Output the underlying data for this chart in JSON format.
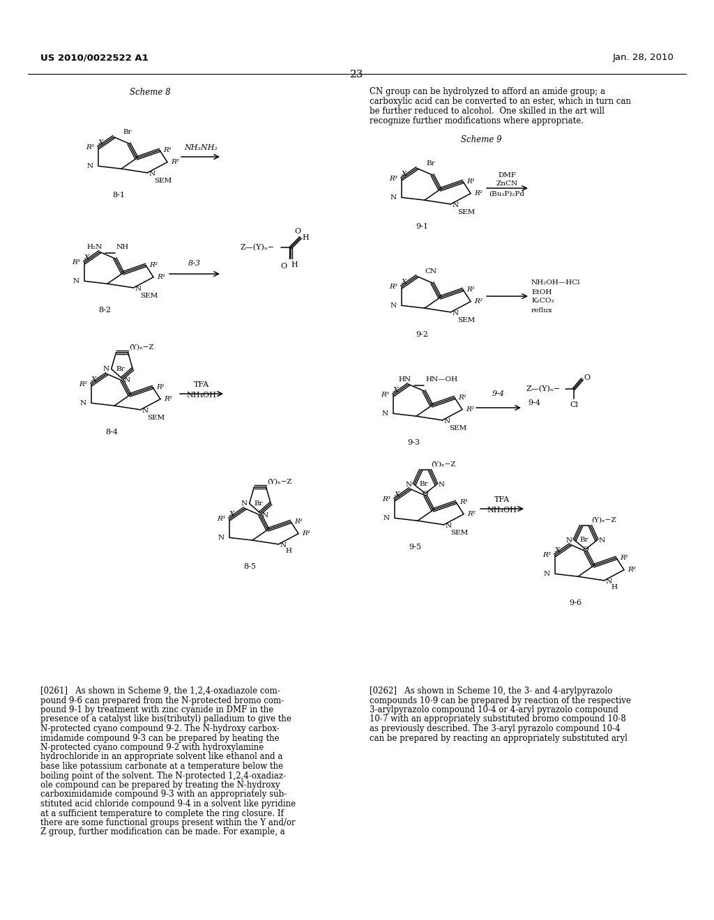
{
  "header_left": "US 2010/0022522 A1",
  "header_right": "Jan. 28, 2010",
  "page_number": "23",
  "scheme8_title": "Scheme 8",
  "scheme9_title": "Scheme 9",
  "bg": "#ffffff",
  "top_right_lines": [
    "CN group can be hydrolyzed to afford an amide group; a",
    "carboxylic acid can be converted to an ester, which in turn can",
    "be further reduced to alcohol.  One skilled in the art will",
    "recognize further modifications where appropriate."
  ],
  "body_left_lines": [
    "[0261]   As shown in Scheme 9, the 1,2,4-oxadiazole com-",
    "pound 9-6 can prepared from the N-protected bromo com-",
    "pound 9-1 by treatment with zinc cyanide in DMF in the",
    "presence of a catalyst like bis(tributyl) palladium to give the",
    "N-protected cyano compound 9-2. The N-hydroxy carbox-",
    "imidamide compound 9-3 can be prepared by heating the",
    "N-protected cyano compound 9-2 with hydroxylamine",
    "hydrochloride in an appropriate solvent like ethanol and a",
    "base like potassium carbonate at a temperature below the",
    "boiling point of the solvent. The N-protected 1,2,4-oxadiaz-",
    "ole compound can be prepared by treating the N-hydroxy",
    "carboximidamide compound 9-3 with an appropriately sub-",
    "stituted acid chloride compound 9-4 in a solvent like pyridine",
    "at a sufficient temperature to complete the ring closure. If",
    "there are some functional groups present within the Y and/or",
    "Z group, further modification can be made. For example, a"
  ],
  "body_right_lines": [
    "[0262]   As shown in Scheme 10, the 3- and 4-arylpyrazolo",
    "compounds 10-9 can be prepared by reaction of the respective",
    "3-arylpyrazolo compound 10-4 or 4-aryl pyrazolo compound",
    "10-7 with an appropriately substituted bromo compound 10-8",
    "as previously described. The 3-aryl pyrazolo compound 10-4",
    "can be prepared by reacting an appropriately substituted aryl"
  ]
}
